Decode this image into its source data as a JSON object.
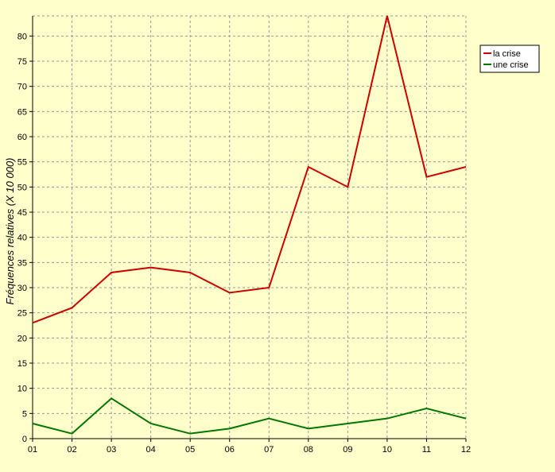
{
  "chart_data": {
    "type": "line",
    "title": "",
    "xlabel": "",
    "ylabel": "Fréquences relatives (X 10 000)",
    "categories": [
      "01",
      "02",
      "03",
      "04",
      "05",
      "06",
      "07",
      "08",
      "09",
      "10",
      "11",
      "12"
    ],
    "ylim": [
      0,
      84
    ],
    "yticks": [
      0,
      5,
      10,
      15,
      20,
      25,
      30,
      35,
      40,
      45,
      50,
      55,
      60,
      65,
      70,
      75,
      80
    ],
    "grid": true,
    "legend_position": "top-right",
    "series": [
      {
        "name": "la crise",
        "color": "#cc0000",
        "values": [
          23,
          26,
          33,
          34,
          33,
          29,
          30,
          54,
          50,
          84,
          52,
          54
        ]
      },
      {
        "name": "une crise",
        "color": "#007700",
        "values": [
          3,
          1,
          8,
          3,
          1,
          2,
          4,
          2,
          3,
          4,
          6,
          4
        ]
      }
    ]
  },
  "colors": {
    "background": "#ffffcc",
    "grid": "#999999",
    "axis": "#000000"
  }
}
